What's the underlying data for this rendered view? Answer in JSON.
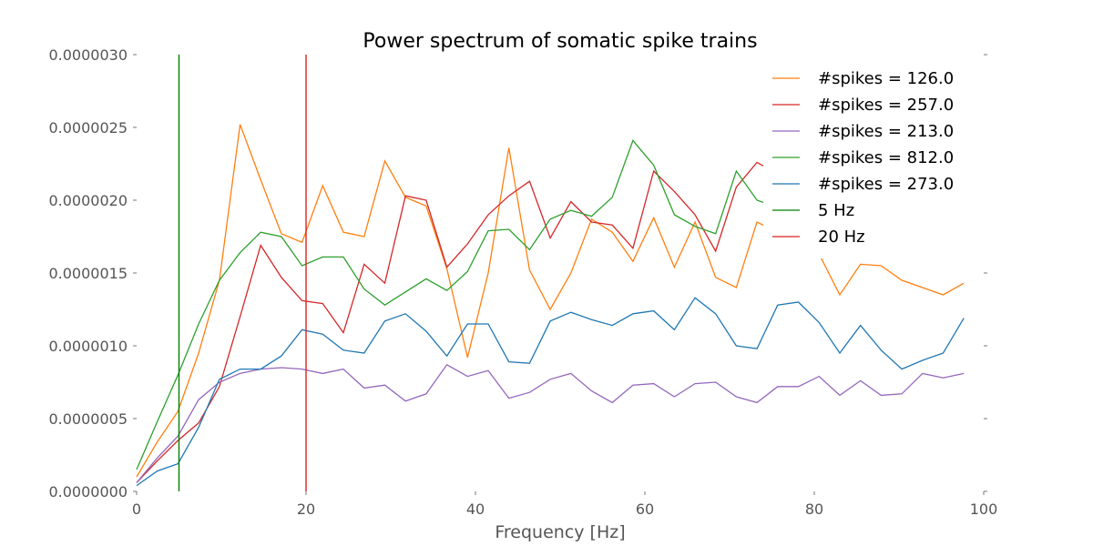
{
  "chart_data": {
    "type": "line",
    "title": "Power spectrum of somatic spike trains",
    "xlabel": "Frequency [Hz]",
    "ylabel": "",
    "xlim": [
      0,
      100
    ],
    "ylim": [
      0,
      3e-06
    ],
    "xticks": [
      0,
      20,
      40,
      60,
      80,
      100
    ],
    "xtick_labels": [
      "0",
      "20",
      "40",
      "60",
      "80",
      "100"
    ],
    "yticks": [
      0,
      5e-07,
      1e-06,
      1.5e-06,
      2e-06,
      2.5e-06,
      3e-06
    ],
    "ytick_labels": [
      "0.0000000",
      "0.0000005",
      "0.0000010",
      "0.0000015",
      "0.0000020",
      "0.0000025",
      "0.0000030"
    ],
    "grid": false,
    "legend_position": "top-right",
    "x": [
      0,
      2.44,
      4.88,
      7.32,
      9.77,
      12.21,
      14.65,
      17.09,
      19.53,
      21.97,
      24.41,
      26.86,
      29.3,
      31.74,
      34.18,
      36.62,
      39.06,
      41.5,
      43.95,
      46.39,
      48.83,
      51.27,
      53.71,
      56.15,
      58.59,
      61.04,
      63.48,
      65.92,
      68.36,
      70.8,
      73.24,
      75.68,
      78.13,
      80.57,
      83.01,
      85.45,
      87.89,
      90.33,
      92.77,
      95.21,
      97.66
    ],
    "series": [
      {
        "name": "#spikes = 126.0",
        "color": "#ff7f0e",
        "values": [
          1e-07,
          3.4e-07,
          5.5e-07,
          9.5e-07,
          1.45e-06,
          2.52e-06,
          2.14e-06,
          1.77e-06,
          1.71e-06,
          2.1e-06,
          1.78e-06,
          1.75e-06,
          2.27e-06,
          2.02e-06,
          1.96e-06,
          1.53e-06,
          9.2e-07,
          1.5e-06,
          2.36e-06,
          1.52e-06,
          1.25e-06,
          1.5e-06,
          1.87e-06,
          1.78e-06,
          1.58e-06,
          1.88e-06,
          1.54e-06,
          1.85e-06,
          1.47e-06,
          1.4e-06,
          1.85e-06,
          1.78e-06,
          1.7e-06,
          1.63e-06,
          1.35e-06,
          1.56e-06,
          1.55e-06,
          1.45e-06,
          1.4e-06,
          1.35e-06,
          1.43e-06
        ]
      },
      {
        "name": "#spikes = 257.0",
        "color": "#d62728",
        "values": [
          6e-08,
          2.1e-07,
          3.5e-07,
          4.7e-07,
          7.2e-07,
          1.2e-06,
          1.69e-06,
          1.47e-06,
          1.31e-06,
          1.29e-06,
          1.09e-06,
          1.56e-06,
          1.43e-06,
          2.03e-06,
          2e-06,
          1.54e-06,
          1.7e-06,
          1.9e-06,
          2.03e-06,
          2.13e-06,
          1.74e-06,
          1.99e-06,
          1.85e-06,
          1.83e-06,
          1.67e-06,
          2.2e-06,
          2.06e-06,
          1.9e-06,
          1.65e-06,
          2.09e-06,
          2.26e-06,
          2.18e-06,
          2.1e-06,
          2.05e-06,
          2e-06,
          2.05e-06,
          2.02e-06,
          2e-06,
          1.98e-06,
          2e-06,
          1.98e-06
        ]
      },
      {
        "name": "#spikes = 213.0",
        "color": "#9467bd",
        "values": [
          6e-08,
          2.3e-07,
          3.8e-07,
          6.3e-07,
          7.5e-07,
          8.1e-07,
          8.4e-07,
          8.5e-07,
          8.4e-07,
          8.1e-07,
          8.4e-07,
          7.1e-07,
          7.3e-07,
          6.2e-07,
          6.7e-07,
          8.7e-07,
          7.9e-07,
          8.3e-07,
          6.4e-07,
          6.8e-07,
          7.7e-07,
          8.1e-07,
          6.9e-07,
          6.1e-07,
          7.3e-07,
          7.4e-07,
          6.5e-07,
          7.4e-07,
          7.5e-07,
          6.5e-07,
          6.1e-07,
          7.2e-07,
          7.2e-07,
          7.9e-07,
          6.6e-07,
          7.6e-07,
          6.6e-07,
          6.7e-07,
          8.1e-07,
          7.8e-07,
          8.1e-07
        ]
      },
      {
        "name": "#spikes = 812.0",
        "color": "#2ca02c",
        "values": [
          1.5e-07,
          4.8e-07,
          8e-07,
          1.15e-06,
          1.45e-06,
          1.64e-06,
          1.78e-06,
          1.75e-06,
          1.55e-06,
          1.61e-06,
          1.61e-06,
          1.39e-06,
          1.28e-06,
          1.37e-06,
          1.46e-06,
          1.38e-06,
          1.51e-06,
          1.79e-06,
          1.8e-06,
          1.66e-06,
          1.87e-06,
          1.93e-06,
          1.89e-06,
          2.02e-06,
          2.41e-06,
          2.24e-06,
          1.9e-06,
          1.82e-06,
          1.77e-06,
          2.2e-06,
          2e-06,
          1.95e-06,
          1.9e-06,
          1.92e-06,
          1.95e-06,
          1.93e-06,
          1.9e-06,
          1.92e-06,
          1.95e-06,
          1.92e-06,
          1.9e-06
        ]
      },
      {
        "name": "#spikes = 273.0",
        "color": "#1f77b4",
        "values": [
          4e-08,
          1.4e-07,
          1.9e-07,
          4.4e-07,
          7.7e-07,
          8.4e-07,
          8.4e-07,
          9.3e-07,
          1.11e-06,
          1.08e-06,
          9.7e-07,
          9.5e-07,
          1.17e-06,
          1.22e-06,
          1.1e-06,
          9.3e-07,
          1.15e-06,
          1.15e-06,
          8.9e-07,
          8.8e-07,
          1.17e-06,
          1.23e-06,
          1.18e-06,
          1.14e-06,
          1.22e-06,
          1.24e-06,
          1.11e-06,
          1.33e-06,
          1.22e-06,
          1e-06,
          9.8e-07,
          1.28e-06,
          1.3e-06,
          1.16e-06,
          9.5e-07,
          1.14e-06,
          9.7e-07,
          8.4e-07,
          9e-07,
          9.5e-07,
          1.19e-06
        ]
      }
    ],
    "vlines": [
      {
        "name": "5 Hz",
        "x": 5,
        "color": "#008000"
      },
      {
        "name": "20 Hz",
        "x": 20,
        "color": "#dd2222"
      }
    ]
  }
}
